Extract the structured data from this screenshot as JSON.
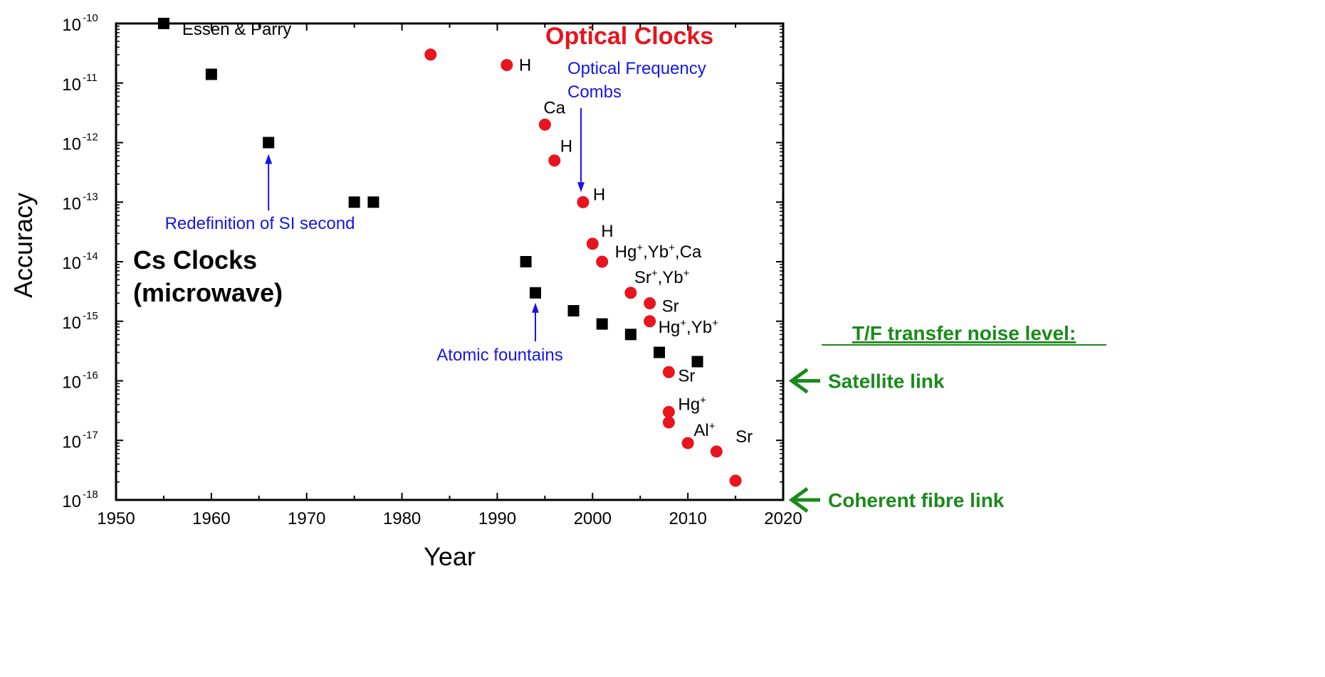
{
  "chart_data": {
    "type": "scatter",
    "xlabel": "Year",
    "ylabel": "Accuracy",
    "xlim": [
      1950,
      2020
    ],
    "ylim": [
      1e-18,
      1e-10
    ],
    "yscale": "log",
    "xticks": [
      "1950",
      "1960",
      "1970",
      "1980",
      "1990",
      "2000",
      "2010",
      "2020"
    ],
    "yticks": [
      {
        "base": "10",
        "exp": "-10",
        "value": 1e-10
      },
      {
        "base": "10",
        "exp": "-11",
        "value": 1e-11
      },
      {
        "base": "10",
        "exp": "-12",
        "value": 1e-12
      },
      {
        "base": "10",
        "exp": "-13",
        "value": 1e-13
      },
      {
        "base": "10",
        "exp": "-14",
        "value": 1e-14
      },
      {
        "base": "10",
        "exp": "-15",
        "value": 1e-15
      },
      {
        "base": "10",
        "exp": "-16",
        "value": 1e-16
      },
      {
        "base": "10",
        "exp": "-17",
        "value": 1e-17
      },
      {
        "base": "10",
        "exp": "-18",
        "value": 1e-18
      }
    ],
    "colors": {
      "cs": "#000000",
      "optical": "#e8141e",
      "blue": "#1515e8",
      "green": "#1a8a1a"
    },
    "series": [
      {
        "name": "Cs Clocks",
        "marker": "square",
        "points": [
          {
            "x": 1955,
            "y": 1e-10
          },
          {
            "x": 1960,
            "y": 1.4e-11
          },
          {
            "x": 1966,
            "y": 1e-12
          },
          {
            "x": 1975,
            "y": 1e-13
          },
          {
            "x": 1977,
            "y": 1e-13
          },
          {
            "x": 1993,
            "y": 1e-14
          },
          {
            "x": 1994,
            "y": 3e-15
          },
          {
            "x": 1998,
            "y": 1.5e-15
          },
          {
            "x": 2001,
            "y": 9e-16
          },
          {
            "x": 2004,
            "y": 6e-16
          },
          {
            "x": 2007,
            "y": 3e-16
          },
          {
            "x": 2011,
            "y": 2.1e-16
          }
        ]
      },
      {
        "name": "Optical Clocks",
        "marker": "circle",
        "points": [
          {
            "x": 1983,
            "y": 3e-11
          },
          {
            "x": 1991,
            "y": 2e-11
          },
          {
            "x": 1995,
            "y": 2e-12
          },
          {
            "x": 1996,
            "y": 5e-13
          },
          {
            "x": 1999,
            "y": 1e-13
          },
          {
            "x": 2000,
            "y": 2e-14
          },
          {
            "x": 2001,
            "y": 1e-14
          },
          {
            "x": 2004,
            "y": 3e-15
          },
          {
            "x": 2006,
            "y": 2e-15
          },
          {
            "x": 2006,
            "y": 1e-15
          },
          {
            "x": 2008,
            "y": 1.4e-16
          },
          {
            "x": 2008,
            "y": 3e-17
          },
          {
            "x": 2008,
            "y": 2e-17
          },
          {
            "x": 2010,
            "y": 9e-18
          },
          {
            "x": 2013,
            "y": 6.5e-18
          },
          {
            "x": 2015,
            "y": 2.1e-18
          }
        ]
      }
    ],
    "point_labels": [
      {
        "parts": [
          {
            "t": "Essen & Parry"
          }
        ]
      },
      {
        "parts": [
          {
            "t": "H"
          }
        ]
      },
      {
        "parts": [
          {
            "t": "Ca"
          }
        ]
      },
      {
        "parts": [
          {
            "t": "H"
          }
        ]
      },
      {
        "parts": [
          {
            "t": "H"
          }
        ]
      },
      {
        "parts": [
          {
            "t": "H"
          }
        ]
      },
      {
        "parts": [
          {
            "t": "Hg"
          },
          {
            "s": "+"
          },
          {
            "t": ",Yb"
          },
          {
            "s": "+"
          },
          {
            "t": ",Ca"
          }
        ]
      },
      {
        "parts": [
          {
            "t": "Sr"
          },
          {
            "s": "+"
          },
          {
            "t": ",Yb"
          },
          {
            "s": "+"
          }
        ]
      },
      {
        "parts": [
          {
            "t": "Sr"
          }
        ]
      },
      {
        "parts": [
          {
            "t": "Hg"
          },
          {
            "s": "+"
          },
          {
            "t": ",Yb"
          },
          {
            "s": "+"
          }
        ]
      },
      {
        "parts": [
          {
            "t": "Sr"
          }
        ]
      },
      {
        "parts": [
          {
            "t": "Hg"
          },
          {
            "s": "+"
          }
        ]
      },
      {
        "parts": [
          {
            "t": "Al"
          },
          {
            "s": "+"
          }
        ]
      },
      {
        "parts": [
          {
            "t": "Sr"
          }
        ]
      }
    ],
    "annotations": {
      "optical_title": "Optical Clocks",
      "cs_title_line1": "Cs Clocks",
      "cs_title_line2": "(microwave)",
      "redefinition": "Redefinition of SI second",
      "combs_line1": "Optical Frequency",
      "combs_line2": "Combs",
      "fountains": "Atomic fountains"
    },
    "transfer": {
      "title": "T/F transfer noise level:",
      "levels": [
        {
          "label": "Satellite link",
          "value": 1e-16
        },
        {
          "label": "Coherent fibre link",
          "value": 1e-18
        }
      ]
    }
  }
}
